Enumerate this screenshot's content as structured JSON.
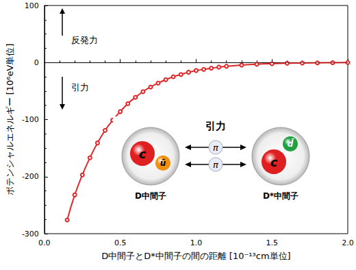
{
  "chart_data": {
    "type": "line",
    "x_label": "D中間子とD*中間子の間の距離 [10⁻¹³cm単位]",
    "y_label": "ポテンシャルエネルギー [10⁶eV単位]",
    "x": [
      0.15,
      0.2,
      0.25,
      0.3,
      0.35,
      0.4,
      0.45,
      0.5,
      0.55,
      0.6,
      0.65,
      0.7,
      0.75,
      0.8,
      0.85,
      0.9,
      0.95,
      1.0,
      1.05,
      1.1,
      1.15,
      1.2,
      1.3,
      1.4,
      1.5,
      1.6,
      1.7,
      1.8,
      1.9,
      2.0
    ],
    "values": [
      -276,
      -232,
      -197,
      -167,
      -141,
      -119,
      -101,
      -86,
      -72,
      -61,
      -51,
      -43,
      -36,
      -30,
      -25,
      -21,
      -17,
      -14,
      -12,
      -10,
      -8,
      -6.5,
      -4.5,
      -3,
      -2,
      -1.3,
      -0.8,
      -0.5,
      -0.3,
      -0.1
    ],
    "color": "#e0282a",
    "marker": "circle",
    "xlim": [
      0,
      2
    ],
    "ylim": [
      -300,
      100
    ],
    "xticks": [
      {
        "value": 0,
        "label": "0.0"
      },
      {
        "value": 0.5,
        "label": "0.5"
      },
      {
        "value": 1,
        "label": "1.0"
      },
      {
        "value": 1.5,
        "label": "1.5"
      },
      {
        "value": 2,
        "label": "2.0"
      }
    ],
    "yticks": [
      -300,
      -200,
      -100,
      0,
      100
    ],
    "grid": false,
    "reference_line": 0,
    "force_labels": {
      "up": "反発力",
      "down": "引力"
    },
    "diagram": {
      "title": "引力",
      "left": {
        "label": "D中間子",
        "quarks": [
          "c",
          "ū"
        ]
      },
      "right": {
        "label": "D*中間子",
        "quarks": [
          "c",
          "d̄"
        ]
      },
      "exchange": [
        "π",
        "π"
      ]
    }
  }
}
